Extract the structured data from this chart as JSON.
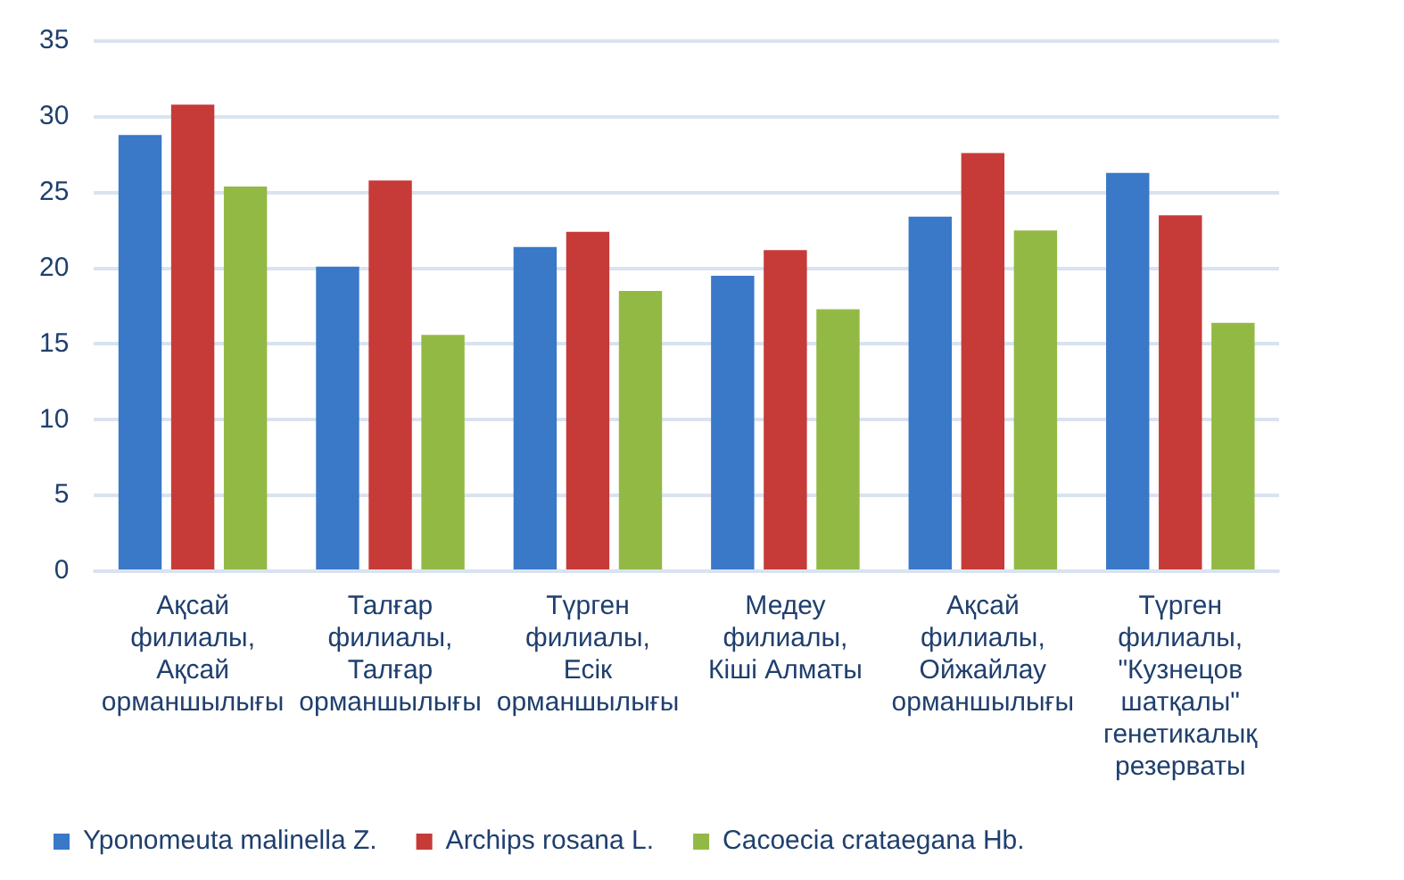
{
  "chart_data": {
    "type": "bar",
    "categories": [
      "Ақсай филиалы, Ақсай орманшылығы",
      "Талғар филиалы, Талғар орманшылығы",
      "Түрген филиалы, Есік орманшылығы",
      "Медеу филиалы, Кіші Алматы",
      "Ақсай филиалы, Ойжайлау орманшылығы",
      "Түрген филиалы, \"Кузнецов шатқалы\" генетикалық резерваты"
    ],
    "series": [
      {
        "name": "Yponomeuta malinella Z.",
        "color": "#3a78c8",
        "values": [
          28.8,
          20.1,
          21.4,
          19.5,
          23.4,
          26.3
        ]
      },
      {
        "name": "Archips rosana L.",
        "color": "#c63a38",
        "values": [
          30.8,
          25.8,
          22.4,
          21.2,
          27.6,
          23.5
        ]
      },
      {
        "name": "Cacoecia crataegana Hb.",
        "color": "#93b945",
        "values": [
          25.4,
          15.6,
          18.5,
          17.3,
          22.5,
          16.4
        ]
      }
    ],
    "ylim": [
      0,
      35
    ],
    "yticks": [
      0,
      5,
      10,
      15,
      20,
      25,
      30,
      35
    ],
    "grid": "y",
    "legend": "bottom left"
  }
}
